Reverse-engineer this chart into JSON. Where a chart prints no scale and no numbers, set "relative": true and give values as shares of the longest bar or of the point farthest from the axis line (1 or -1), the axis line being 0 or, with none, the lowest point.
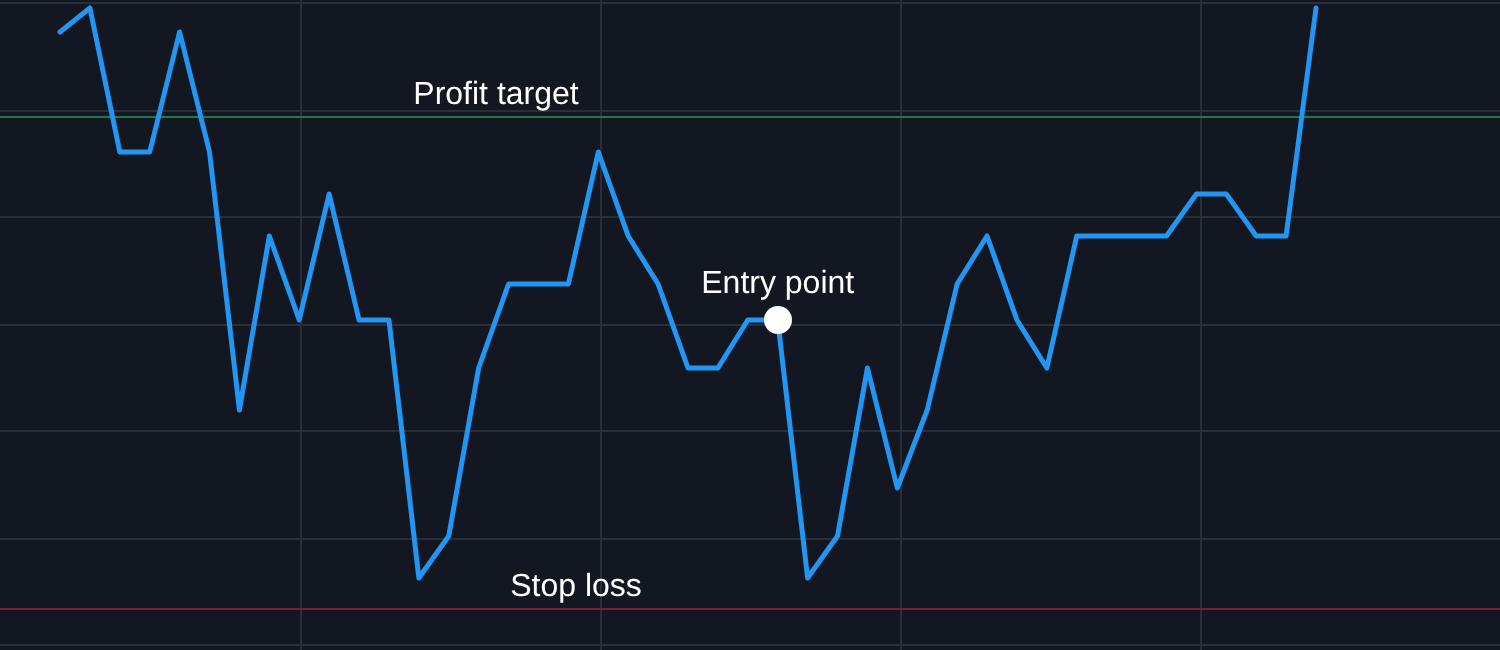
{
  "chart_data": {
    "type": "line",
    "relative": true,
    "grid": true,
    "legend": false,
    "tick_labels": false,
    "marker": "none",
    "line_style": "solid",
    "categories": [
      null,
      null,
      null,
      null,
      null,
      null,
      null,
      null,
      null,
      null,
      null,
      null,
      null,
      null,
      null,
      null,
      null,
      null,
      null,
      null,
      null,
      null,
      null,
      null,
      null,
      null,
      null,
      null,
      null,
      null,
      null,
      null,
      null,
      null,
      null,
      null,
      null,
      null,
      null,
      null,
      null,
      null,
      null
    ],
    "series": [
      {
        "color": "#2196f3",
        "values": [
          0.96,
          1,
          0.76,
          0.76,
          0.96,
          0.76,
          0.33,
          0.62,
          0.48,
          0.69,
          0.48,
          0.48,
          0.05,
          0.12,
          0.4,
          0.54,
          0.54,
          0.54,
          0.76,
          0.62,
          0.54,
          0.4,
          0.4,
          0.48,
          0.48,
          0.05,
          0.12,
          0.4,
          0.2,
          0.33,
          0.54,
          0.62,
          0.48,
          0.4,
          0.62,
          0.62,
          0.62,
          0.62,
          0.69,
          0.69,
          0.62,
          0.62,
          1
        ]
      }
    ],
    "ref_lines": [
      {
        "axis": "y",
        "value": 0.82,
        "label": "Profit target",
        "color": "#1e7b45"
      },
      {
        "axis": "y",
        "value": 0,
        "label": "Stop loss",
        "color": "#7a1f33"
      }
    ],
    "annotations": [
      {
        "text": "Entry point",
        "y": 0.48
      }
    ]
  }
}
